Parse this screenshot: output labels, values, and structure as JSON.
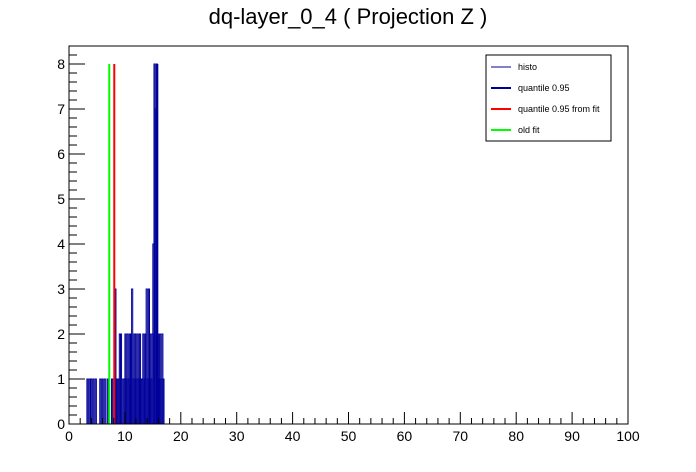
{
  "chart_data": {
    "type": "bar",
    "title": "dq-layer_0_4 ( Projection Z )",
    "xlabel": "",
    "ylabel": "",
    "xlim": [
      0,
      100
    ],
    "ylim": [
      0,
      8.4
    ],
    "x_ticks": [
      "0",
      "10",
      "20",
      "30",
      "40",
      "50",
      "60",
      "70",
      "80",
      "90",
      "100"
    ],
    "y_ticks": [
      "0",
      "1",
      "2",
      "3",
      "4",
      "5",
      "6",
      "7",
      "8"
    ],
    "grid": false,
    "legend_position": "top-right",
    "histogram": {
      "name": "histo",
      "color": "#000099",
      "bin_width": 0.2,
      "bins": [
        [
          3.2,
          1
        ],
        [
          3.6,
          1
        ],
        [
          3.9,
          1
        ],
        [
          4.3,
          1
        ],
        [
          4.7,
          1
        ],
        [
          5.5,
          1
        ],
        [
          5.9,
          1
        ],
        [
          6.3,
          1
        ],
        [
          6.8,
          1
        ],
        [
          7.6,
          1
        ],
        [
          8.0,
          1
        ],
        [
          8.2,
          3
        ],
        [
          8.4,
          1
        ],
        [
          8.6,
          1
        ],
        [
          8.8,
          1
        ],
        [
          9.0,
          2
        ],
        [
          9.2,
          2
        ],
        [
          9.6,
          1
        ],
        [
          9.8,
          1
        ],
        [
          10.0,
          2
        ],
        [
          10.2,
          1
        ],
        [
          10.4,
          2
        ],
        [
          10.6,
          1
        ],
        [
          10.8,
          2
        ],
        [
          11.0,
          2
        ],
        [
          11.2,
          3
        ],
        [
          11.4,
          1
        ],
        [
          11.6,
          2
        ],
        [
          11.8,
          2
        ],
        [
          12.0,
          1
        ],
        [
          12.2,
          2
        ],
        [
          12.4,
          1
        ],
        [
          12.6,
          2
        ],
        [
          12.8,
          1
        ],
        [
          13.0,
          1
        ],
        [
          13.2,
          2
        ],
        [
          13.4,
          1
        ],
        [
          13.6,
          2
        ],
        [
          13.8,
          3
        ],
        [
          14.0,
          1
        ],
        [
          14.2,
          3
        ],
        [
          14.4,
          2
        ],
        [
          14.6,
          1
        ],
        [
          14.8,
          2
        ],
        [
          15.0,
          4
        ],
        [
          15.2,
          8
        ],
        [
          15.4,
          7
        ],
        [
          15.6,
          8
        ],
        [
          15.8,
          2
        ],
        [
          16.0,
          1
        ],
        [
          16.2,
          2
        ],
        [
          16.4,
          1
        ],
        [
          16.6,
          2
        ],
        [
          16.8,
          1
        ]
      ]
    },
    "markers": [
      {
        "name": "quantile 0.95",
        "x": 15.8,
        "height": 8,
        "color": "#000099"
      },
      {
        "name": "quantile 0.95 from fit",
        "x": 8.1,
        "height": 8,
        "color": "#ff0000"
      },
      {
        "name": "old fit",
        "x": 7.2,
        "height": 8,
        "color": "#00ff00"
      }
    ],
    "legend": [
      {
        "label": "histo",
        "color": "#000099",
        "style": "thin"
      },
      {
        "label": "quantile 0.95",
        "color": "#000099",
        "style": "thick"
      },
      {
        "label": "quantile 0.95 from fit",
        "color": "#ff0000",
        "style": "thick"
      },
      {
        "label": "old fit",
        "color": "#00ff00",
        "style": "thick"
      }
    ]
  }
}
